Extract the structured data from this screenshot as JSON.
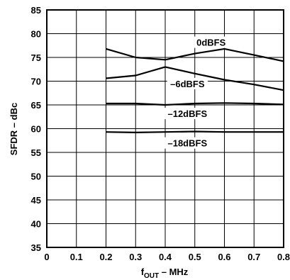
{
  "chart_data": {
    "type": "line",
    "xlabel_main": "f",
    "xlabel_sub": "OUT",
    "xlabel_rest": " – MHz",
    "ylabel": "SFDR – dBc",
    "xlim": [
      0,
      0.8
    ],
    "ylim": [
      35,
      85
    ],
    "x_ticks": [
      "0",
      "0.1",
      "0.2",
      "0.3",
      "0.4",
      "0.5",
      "0.6",
      "0.7",
      "0.8"
    ],
    "y_ticks": [
      "35",
      "40",
      "45",
      "50",
      "55",
      "60",
      "65",
      "70",
      "75",
      "80",
      "85"
    ],
    "grid": true,
    "series": [
      {
        "name": "0dBFS",
        "x": [
          0.2,
          0.3,
          0.4,
          0.5,
          0.6,
          0.7,
          0.8
        ],
        "values": [
          76.8,
          75.0,
          74.5,
          75.8,
          76.8,
          75.5,
          74.2
        ]
      },
      {
        "name": "–6dBFS",
        "x": [
          0.2,
          0.3,
          0.4,
          0.5,
          0.6,
          0.7,
          0.8
        ],
        "values": [
          70.6,
          71.2,
          73.0,
          71.6,
          70.3,
          69.3,
          68.1
        ]
      },
      {
        "name": "–12dBFS",
        "x": [
          0.2,
          0.3,
          0.4,
          0.5,
          0.6,
          0.7,
          0.8
        ],
        "values": [
          65.3,
          65.3,
          65.0,
          65.3,
          65.4,
          65.3,
          65.1
        ]
      },
      {
        "name": "–18dBFS",
        "x": [
          0.2,
          0.3,
          0.4,
          0.5,
          0.6,
          0.7,
          0.8
        ],
        "values": [
          59.3,
          59.2,
          59.3,
          59.4,
          59.3,
          59.3,
          59.3
        ]
      }
    ]
  }
}
